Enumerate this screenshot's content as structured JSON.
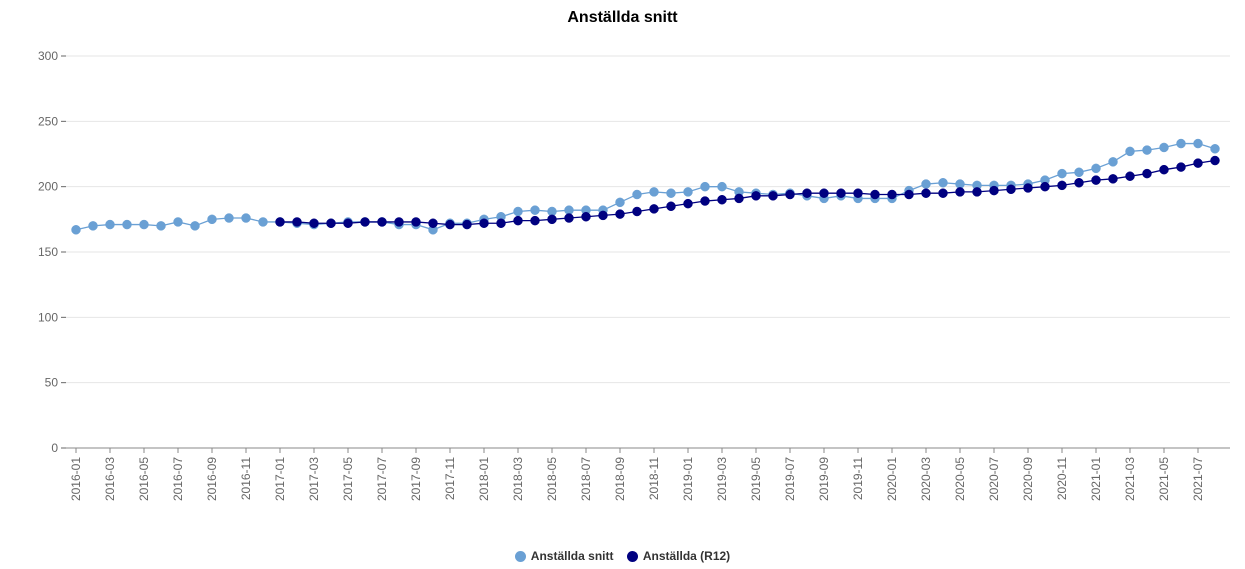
{
  "chart_data": {
    "type": "line",
    "title": "Anställda snitt",
    "xlabel": "",
    "ylabel": "",
    "ylim": [
      0,
      300
    ],
    "yticks": [
      "0",
      "50",
      "100",
      "150",
      "200",
      "250",
      "300"
    ],
    "grid": true,
    "legend_position": "bottom-center",
    "x": [
      "2016-01",
      "2016-02",
      "2016-03",
      "2016-04",
      "2016-05",
      "2016-06",
      "2016-07",
      "2016-08",
      "2016-09",
      "2016-10",
      "2016-11",
      "2016-12",
      "2017-01",
      "2017-02",
      "2017-03",
      "2017-04",
      "2017-05",
      "2017-06",
      "2017-07",
      "2017-08",
      "2017-09",
      "2017-10",
      "2017-11",
      "2017-12",
      "2018-01",
      "2018-02",
      "2018-03",
      "2018-04",
      "2018-05",
      "2018-06",
      "2018-07",
      "2018-08",
      "2018-09",
      "2018-10",
      "2018-11",
      "2018-12",
      "2019-01",
      "2019-02",
      "2019-03",
      "2019-04",
      "2019-05",
      "2019-06",
      "2019-07",
      "2019-08",
      "2019-09",
      "2019-10",
      "2019-11",
      "2019-12",
      "2020-01",
      "2020-02",
      "2020-03",
      "2020-04",
      "2020-05",
      "2020-06",
      "2020-07",
      "2020-08",
      "2020-09",
      "2020-10",
      "2020-11",
      "2020-12",
      "2021-01",
      "2021-02",
      "2021-03",
      "2021-04",
      "2021-05",
      "2021-06",
      "2021-07",
      "2021-08"
    ],
    "xtick_labels": [
      "2016-01",
      "2016-03",
      "2016-05",
      "2016-07",
      "2016-09",
      "2016-11",
      "2017-01",
      "2017-03",
      "2017-05",
      "2017-07",
      "2017-09",
      "2017-11",
      "2018-01",
      "2018-03",
      "2018-05",
      "2018-07",
      "2018-09",
      "2018-11",
      "2019-01",
      "2019-03",
      "2019-05",
      "2019-07",
      "2019-09",
      "2019-11",
      "2020-01",
      "2020-03",
      "2020-05",
      "2020-07",
      "2020-09",
      "2020-11",
      "2021-01",
      "2021-03",
      "2021-05",
      "2021-07"
    ],
    "series": [
      {
        "name": "Anställda snitt",
        "color": "#6aa0d4",
        "values": [
          167,
          170,
          171,
          171,
          171,
          170,
          173,
          170,
          175,
          176,
          176,
          173,
          173,
          172,
          171,
          172,
          173,
          173,
          173,
          171,
          171,
          167,
          172,
          172,
          175,
          177,
          181,
          182,
          181,
          182,
          182,
          182,
          188,
          194,
          196,
          195,
          196,
          200,
          200,
          196,
          195,
          194,
          195,
          193,
          191,
          193,
          191,
          191,
          191,
          197,
          202,
          203,
          202,
          201,
          201,
          201,
          202,
          205,
          210,
          211,
          214,
          219,
          227,
          228,
          230,
          233,
          233,
          229
        ]
      },
      {
        "name": "Anställda (R12)",
        "color": "#000080",
        "values": [
          null,
          null,
          null,
          null,
          null,
          null,
          null,
          null,
          null,
          null,
          null,
          null,
          173,
          173,
          172,
          172,
          172,
          173,
          173,
          173,
          173,
          172,
          171,
          171,
          172,
          172,
          174,
          174,
          175,
          176,
          177,
          178,
          179,
          181,
          183,
          185,
          187,
          189,
          190,
          191,
          193,
          193,
          194,
          195,
          195,
          195,
          195,
          194,
          194,
          194,
          195,
          195,
          196,
          196,
          197,
          198,
          199,
          200,
          201,
          203,
          205,
          206,
          208,
          210,
          213,
          215,
          218,
          220
        ]
      }
    ]
  }
}
